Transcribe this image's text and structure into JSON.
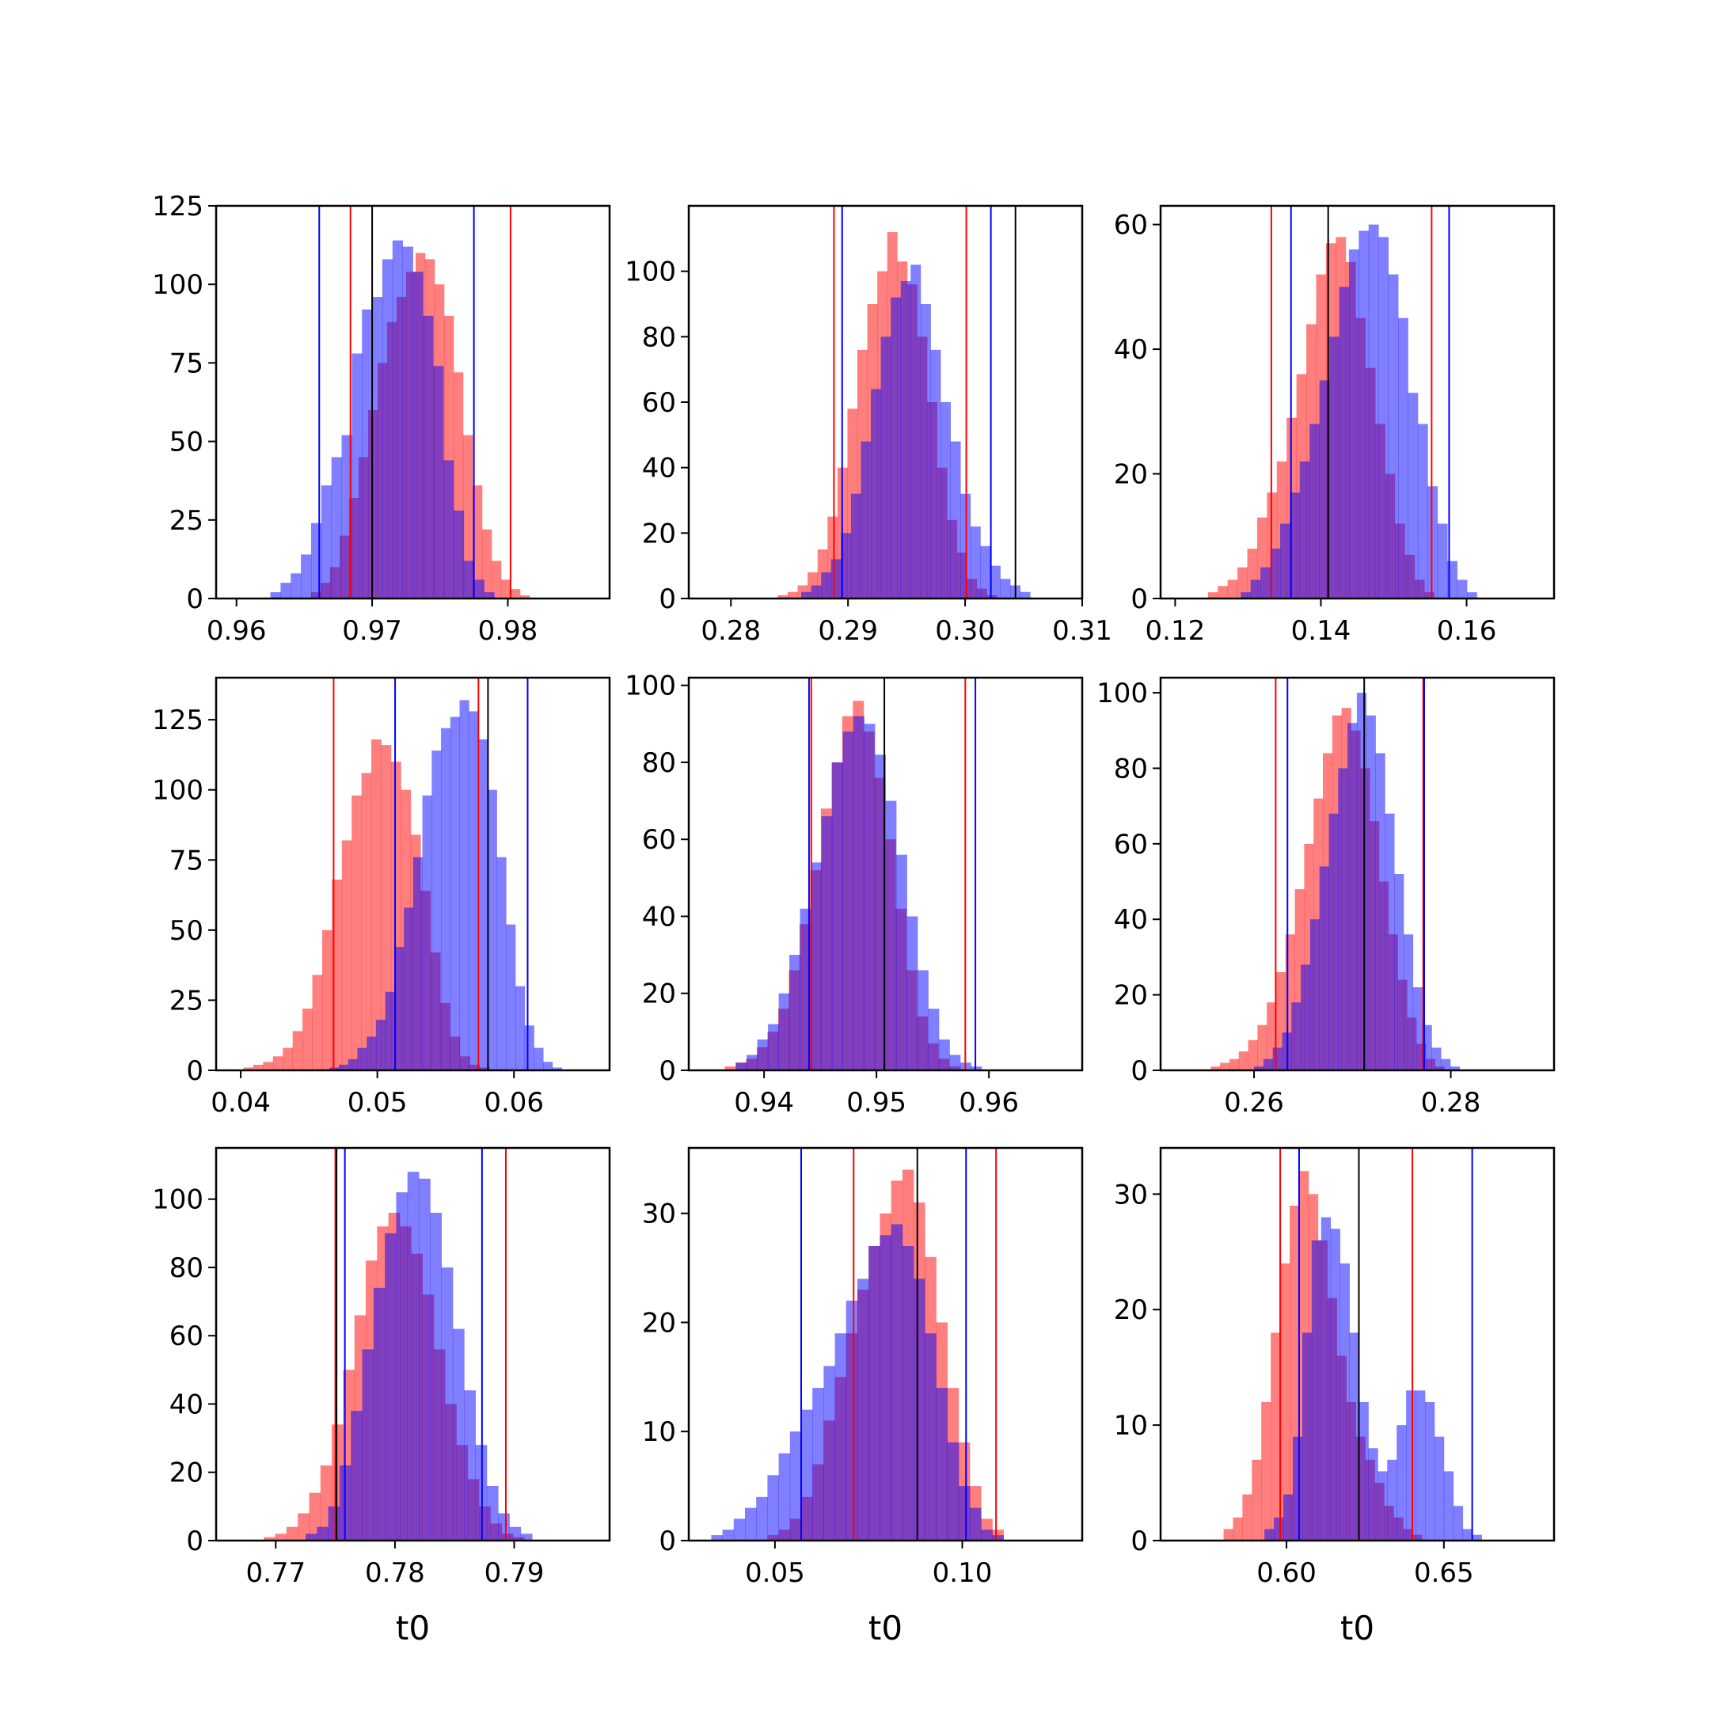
{
  "colors": {
    "red": "#ff0000",
    "blue": "#0000ff",
    "black": "#000000",
    "overlap": "#7f3fbf"
  },
  "chart_data": [
    {
      "type": "histogram",
      "xlabel": "",
      "xlim": [
        0.9585,
        0.9875
      ],
      "ylim": [
        0,
        125
      ],
      "xticks": [
        0.96,
        0.97,
        0.98
      ],
      "xtick_labels": [
        "0.96",
        "0.97",
        "0.98"
      ],
      "yticks": [
        0,
        25,
        50,
        75,
        100,
        125
      ],
      "ytick_labels": [
        "0",
        "25",
        "50",
        "75",
        "100",
        "125"
      ],
      "series": [
        {
          "color": "red",
          "x_start": 0.9655,
          "bin_width": 0.0007,
          "counts": [
            2,
            5,
            10,
            20,
            32,
            45,
            60,
            75,
            88,
            96,
            104,
            110,
            108,
            100,
            90,
            72,
            52,
            36,
            22,
            12,
            6,
            3,
            1
          ]
        },
        {
          "color": "blue",
          "x_start": 0.9625,
          "bin_width": 0.00075,
          "counts": [
            2,
            5,
            8,
            14,
            24,
            36,
            45,
            52,
            78,
            92,
            96,
            108,
            114,
            112,
            104,
            90,
            74,
            44,
            28,
            12,
            6,
            2
          ]
        }
      ],
      "vlines": [
        {
          "x": 0.9661,
          "color": "blue"
        },
        {
          "x": 0.9684,
          "color": "red"
        },
        {
          "x": 0.97,
          "color": "black"
        },
        {
          "x": 0.9775,
          "color": "blue"
        },
        {
          "x": 0.9802,
          "color": "red"
        }
      ]
    },
    {
      "type": "histogram",
      "xlabel": "",
      "xlim": [
        0.2764,
        0.31
      ],
      "ylim": [
        0,
        120
      ],
      "xticks": [
        0.28,
        0.29,
        0.3,
        0.31
      ],
      "xtick_labels": [
        "0.28",
        "0.29",
        "0.30",
        "0.31"
      ],
      "yticks": [
        0,
        20,
        40,
        60,
        80,
        100
      ],
      "ytick_labels": [
        "0",
        "20",
        "40",
        "60",
        "80",
        "100"
      ],
      "series": [
        {
          "color": "red",
          "x_start": 0.284,
          "bin_width": 0.00085,
          "counts": [
            1,
            2,
            4,
            8,
            15,
            25,
            40,
            58,
            76,
            90,
            100,
            112,
            103,
            96,
            80,
            60,
            40,
            24,
            14,
            6,
            3,
            1
          ]
        },
        {
          "color": "blue",
          "x_start": 0.286,
          "bin_width": 0.00085,
          "counts": [
            2,
            4,
            8,
            12,
            20,
            32,
            48,
            64,
            80,
            92,
            97,
            102,
            90,
            76,
            60,
            48,
            32,
            22,
            16,
            10,
            6,
            4,
            2
          ]
        }
      ],
      "vlines": [
        {
          "x": 0.2888,
          "color": "red"
        },
        {
          "x": 0.2895,
          "color": "blue"
        },
        {
          "x": 0.3001,
          "color": "red"
        },
        {
          "x": 0.3022,
          "color": "blue"
        },
        {
          "x": 0.3043,
          "color": "black"
        }
      ]
    },
    {
      "type": "histogram",
      "xlabel": "",
      "xlim": [
        0.118,
        0.172
      ],
      "ylim": [
        0,
        63
      ],
      "xticks": [
        0.12,
        0.14,
        0.16
      ],
      "xtick_labels": [
        "0.12",
        "0.14",
        "0.16"
      ],
      "yticks": [
        0,
        20,
        40,
        60
      ],
      "ytick_labels": [
        "0",
        "20",
        "40",
        "60"
      ],
      "series": [
        {
          "color": "red",
          "x_start": 0.1245,
          "bin_width": 0.00135,
          "counts": [
            1,
            2,
            3,
            5,
            8,
            13,
            17,
            22,
            29,
            36,
            44,
            52,
            57,
            58,
            54,
            45,
            37,
            28,
            20,
            12,
            7,
            3,
            1
          ]
        },
        {
          "color": "blue",
          "x_start": 0.129,
          "bin_width": 0.00135,
          "counts": [
            1,
            3,
            5,
            8,
            12,
            17,
            22,
            28,
            35,
            42,
            50,
            56,
            59,
            60,
            58,
            52,
            45,
            33,
            28,
            18,
            12,
            6,
            3,
            1
          ]
        }
      ],
      "vlines": [
        {
          "x": 0.1332,
          "color": "red"
        },
        {
          "x": 0.1359,
          "color": "blue"
        },
        {
          "x": 0.141,
          "color": "black"
        },
        {
          "x": 0.1552,
          "color": "red"
        },
        {
          "x": 0.1576,
          "color": "blue"
        }
      ]
    },
    {
      "type": "histogram",
      "xlabel": "",
      "xlim": [
        0.0382,
        0.067
      ],
      "ylim": [
        0,
        140
      ],
      "xticks": [
        0.04,
        0.05,
        0.06
      ],
      "xtick_labels": [
        "0.04",
        "0.05",
        "0.06"
      ],
      "yticks": [
        0,
        25,
        50,
        75,
        100,
        125
      ],
      "ytick_labels": [
        "0",
        "25",
        "50",
        "75",
        "100",
        "125"
      ],
      "series": [
        {
          "color": "red",
          "x_start": 0.0402,
          "bin_width": 0.00072,
          "counts": [
            1,
            2,
            3,
            5,
            8,
            14,
            22,
            34,
            50,
            68,
            82,
            98,
            106,
            118,
            116,
            110,
            100,
            84,
            64,
            42,
            24,
            12,
            5,
            2,
            1
          ]
        },
        {
          "color": "blue",
          "x_start": 0.0465,
          "bin_width": 0.00068,
          "counts": [
            1,
            2,
            4,
            8,
            12,
            18,
            28,
            44,
            58,
            76,
            98,
            114,
            122,
            126,
            132,
            128,
            118,
            100,
            76,
            52,
            30,
            16,
            8,
            3,
            1
          ]
        }
      ],
      "vlines": [
        {
          "x": 0.0468,
          "color": "red"
        },
        {
          "x": 0.0513,
          "color": "blue"
        },
        {
          "x": 0.0574,
          "color": "red"
        },
        {
          "x": 0.0581,
          "color": "black"
        },
        {
          "x": 0.061,
          "color": "blue"
        }
      ]
    },
    {
      "type": "histogram",
      "xlabel": "",
      "xlim": [
        0.9333,
        0.9683
      ],
      "ylim": [
        0,
        102
      ],
      "xticks": [
        0.94,
        0.95,
        0.96
      ],
      "xtick_labels": [
        "0.94",
        "0.95",
        "0.96"
      ],
      "yticks": [
        0,
        20,
        40,
        60,
        80,
        100
      ],
      "ytick_labels": [
        "0",
        "20",
        "40",
        "60",
        "80",
        "100"
      ],
      "series": [
        {
          "color": "red",
          "x_start": 0.9365,
          "bin_width": 0.00095,
          "counts": [
            1,
            2,
            3,
            6,
            10,
            16,
            26,
            38,
            52,
            68,
            80,
            92,
            96,
            88,
            76,
            60,
            42,
            26,
            14,
            7,
            3,
            1
          ]
        },
        {
          "color": "blue",
          "x_start": 0.9375,
          "bin_width": 0.00095,
          "counts": [
            2,
            4,
            8,
            12,
            20,
            30,
            42,
            54,
            66,
            80,
            88,
            92,
            90,
            82,
            70,
            56,
            40,
            26,
            16,
            8,
            4,
            2,
            1
          ]
        }
      ],
      "vlines": [
        {
          "x": 0.944,
          "color": "blue"
        },
        {
          "x": 0.9442,
          "color": "red"
        },
        {
          "x": 0.9507,
          "color": "black"
        },
        {
          "x": 0.9579,
          "color": "red"
        },
        {
          "x": 0.9588,
          "color": "blue"
        }
      ]
    },
    {
      "type": "histogram",
      "xlabel": "",
      "xlim": [
        0.2505,
        0.2905
      ],
      "ylim": [
        0,
        104
      ],
      "xticks": [
        0.26,
        0.28
      ],
      "xtick_labels": [
        "0.26",
        "0.28"
      ],
      "yticks": [
        0,
        20,
        40,
        60,
        80,
        100
      ],
      "ytick_labels": [
        "0",
        "20",
        "40",
        "60",
        "80",
        "100"
      ],
      "series": [
        {
          "color": "red",
          "x_start": 0.2556,
          "bin_width": 0.00095,
          "counts": [
            1,
            2,
            3,
            5,
            8,
            12,
            18,
            26,
            36,
            48,
            60,
            72,
            84,
            94,
            96,
            90,
            80,
            66,
            50,
            36,
            24,
            14,
            7,
            3,
            1
          ]
        },
        {
          "color": "blue",
          "x_start": 0.26,
          "bin_width": 0.00095,
          "counts": [
            1,
            3,
            6,
            10,
            18,
            28,
            40,
            54,
            68,
            80,
            92,
            100,
            94,
            84,
            68,
            52,
            36,
            22,
            12,
            6,
            3,
            1
          ]
        }
      ],
      "vlines": [
        {
          "x": 0.2622,
          "color": "red"
        },
        {
          "x": 0.2634,
          "color": "blue"
        },
        {
          "x": 0.2712,
          "color": "black"
        },
        {
          "x": 0.2772,
          "color": "red"
        },
        {
          "x": 0.2773,
          "color": "blue"
        }
      ]
    },
    {
      "type": "histogram",
      "xlabel": "t0",
      "xlim": [
        0.765,
        0.798
      ],
      "ylim": [
        0,
        115
      ],
      "xticks": [
        0.77,
        0.78,
        0.79
      ],
      "xtick_labels": [
        "0.77",
        "0.78",
        "0.79"
      ],
      "yticks": [
        0,
        20,
        40,
        60,
        80,
        100
      ],
      "ytick_labels": [
        "0",
        "20",
        "40",
        "60",
        "80",
        "100"
      ],
      "series": [
        {
          "color": "red",
          "x_start": 0.769,
          "bin_width": 0.00095,
          "counts": [
            1,
            2,
            4,
            8,
            14,
            22,
            34,
            50,
            66,
            82,
            92,
            96,
            92,
            84,
            72,
            56,
            40,
            28,
            18,
            10,
            5,
            2,
            1
          ]
        },
        {
          "color": "blue",
          "x_start": 0.7725,
          "bin_width": 0.00095,
          "counts": [
            2,
            4,
            10,
            22,
            38,
            56,
            74,
            90,
            102,
            108,
            106,
            96,
            80,
            62,
            44,
            28,
            16,
            8,
            4,
            2
          ]
        }
      ],
      "vlines": [
        {
          "x": 0.775,
          "color": "red"
        },
        {
          "x": 0.7751,
          "color": "black"
        },
        {
          "x": 0.7758,
          "color": "blue"
        },
        {
          "x": 0.7873,
          "color": "blue"
        },
        {
          "x": 0.7893,
          "color": "red"
        }
      ]
    },
    {
      "type": "histogram",
      "xlabel": "t0",
      "xlim": [
        0.027,
        0.132
      ],
      "ylim": [
        0,
        36
      ],
      "xticks": [
        0.05,
        0.1
      ],
      "xtick_labels": [
        "0.05",
        "0.10"
      ],
      "yticks": [
        0,
        10,
        20,
        30
      ],
      "ytick_labels": [
        "0",
        "10",
        "20",
        "30"
      ],
      "series": [
        {
          "color": "red",
          "x_start": 0.048,
          "bin_width": 0.003,
          "counts": [
            0.5,
            1,
            2,
            4,
            7,
            11,
            15,
            19,
            23,
            27,
            30,
            33,
            34,
            31,
            26,
            20,
            14,
            9,
            5,
            2,
            1
          ]
        },
        {
          "color": "blue",
          "x_start": 0.033,
          "bin_width": 0.003,
          "counts": [
            0.5,
            1,
            2,
            3,
            4,
            6,
            8,
            10,
            12,
            14,
            16,
            19,
            22,
            24,
            27,
            28,
            29,
            27,
            24,
            19,
            14,
            9,
            5,
            3,
            1,
            0.5
          ]
        }
      ],
      "vlines": [
        {
          "x": 0.057,
          "color": "blue"
        },
        {
          "x": 0.071,
          "color": "red"
        },
        {
          "x": 0.088,
          "color": "black"
        },
        {
          "x": 0.101,
          "color": "blue"
        },
        {
          "x": 0.109,
          "color": "red"
        }
      ]
    },
    {
      "type": "histogram",
      "xlabel": "t0",
      "xlim": [
        0.56,
        0.685
      ],
      "ylim": [
        0,
        34
      ],
      "xticks": [
        0.6,
        0.65
      ],
      "xtick_labels": [
        "0.60",
        "0.65"
      ],
      "yticks": [
        0,
        10,
        20,
        30
      ],
      "ytick_labels": [
        "0",
        "10",
        "20",
        "30"
      ],
      "series": [
        {
          "color": "red",
          "x_start": 0.58,
          "bin_width": 0.003,
          "counts": [
            1,
            2,
            4,
            7,
            12,
            18,
            24,
            29,
            32,
            30,
            26,
            21,
            16,
            12,
            9,
            7,
            5,
            3,
            2,
            1,
            0.5
          ]
        },
        {
          "color": "blue",
          "x_start": 0.593,
          "bin_width": 0.003,
          "counts": [
            1,
            2,
            4,
            9,
            18,
            26,
            28,
            27,
            24,
            18,
            12,
            8,
            6,
            7,
            10,
            13,
            13,
            12,
            9,
            6,
            3,
            1,
            0.5
          ]
        }
      ],
      "vlines": [
        {
          "x": 0.598,
          "color": "red"
        },
        {
          "x": 0.604,
          "color": "blue"
        },
        {
          "x": 0.623,
          "color": "black"
        },
        {
          "x": 0.64,
          "color": "red"
        },
        {
          "x": 0.659,
          "color": "blue"
        }
      ]
    }
  ]
}
